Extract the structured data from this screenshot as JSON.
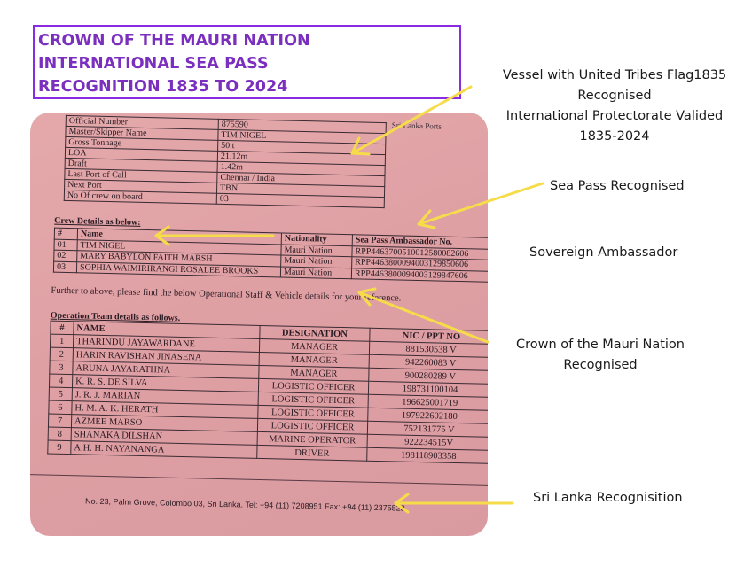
{
  "title": {
    "lines": [
      "CROWN OF THE MAURI NATION",
      "INTERNATIONAL SEA PASS",
      "RECOGNITION 1835 TO 2024"
    ]
  },
  "colors": {
    "title": "#7b2fbe",
    "border": "#8a2be2",
    "arrow": "#f7dc4a",
    "paper": "#e0a3a6"
  },
  "document": {
    "header_fragment": "Sri Lanka Ports",
    "vessel_rows": [
      {
        "label": "Official Number",
        "value": "875590"
      },
      {
        "label": "Master/Skipper Name",
        "value": "TIM NIGEL"
      },
      {
        "label": "Gross Tonnage",
        "value": "50 t"
      },
      {
        "label": "LOA",
        "value": "21.12m"
      },
      {
        "label": "Draft",
        "value": "1.42m"
      },
      {
        "label": "Last Port of Call",
        "value": "Chennai / India"
      },
      {
        "label": "Next Port",
        "value": "TBN"
      },
      {
        "label": "No Of crew on board",
        "value": "03"
      }
    ],
    "crew_heading": "Crew Details as below:",
    "crew_headers": [
      "#",
      "Name",
      "Nationality",
      "Sea Pass Ambassador No."
    ],
    "crew_rows": [
      {
        "num": "01",
        "name": "TIM NIGEL",
        "nationality": "Mauri Nation",
        "pass": "RPP4463700510012580082606"
      },
      {
        "num": "02",
        "name": "MARY BABYLON FAITH MARSH",
        "nationality": "Mauri Nation",
        "pass": "RPP4463800094003129850606"
      },
      {
        "num": "03",
        "name": "SOPHIA WAIMIRIRANGI ROSALEE BROOKS",
        "nationality": "Mauri Nation",
        "pass": "RPP4463800094003129847606"
      }
    ],
    "further_text": "Further to above, please find the below Operational Staff & Vehicle details for your reference.",
    "ops_heading": "Operation Team details as follows.",
    "ops_headers": [
      "#",
      "NAME",
      "DESIGNATION",
      "NIC / PPT NO"
    ],
    "ops_rows": [
      {
        "num": "1",
        "name": "THARINDU JAYAWARDANE",
        "designation": "MANAGER",
        "nic": "881530538 V"
      },
      {
        "num": "2",
        "name": "HARIN RAVISHAN JINASENA",
        "designation": "MANAGER",
        "nic": "942260083 V"
      },
      {
        "num": "3",
        "name": "ARUNA JAYARATHNA",
        "designation": "MANAGER",
        "nic": "900280289 V"
      },
      {
        "num": "4",
        "name": "K. R. S. DE SILVA",
        "designation": "LOGISTIC OFFICER",
        "nic": "198731100104"
      },
      {
        "num": "5",
        "name": "J. R. J. MARIAN",
        "designation": "LOGISTIC OFFICER",
        "nic": "196625001719"
      },
      {
        "num": "6",
        "name": "H. M. A. K. HERATH",
        "designation": "LOGISTIC OFFICER",
        "nic": "197922602180"
      },
      {
        "num": "7",
        "name": "AZMEE MARSO",
        "designation": "LOGISTIC OFFICER",
        "nic": "752131775 V"
      },
      {
        "num": "8",
        "name": "SHANAKA DILSHAN",
        "designation": "MARINE OPERATOR",
        "nic": "922234515V"
      },
      {
        "num": "9",
        "name": "A.H. H. NAYANANGA",
        "designation": "DRIVER",
        "nic": "198118903358"
      }
    ],
    "footer": "No. 23, Palm Grove, Colombo 03, Sri Lanka. Tel: +94 (11) 7208951 Fax: +94 (11) 2375523"
  },
  "annotations": {
    "vessel": [
      "Vessel with United Tribes Flag1835",
      "Recognised",
      "International Protectorate Valided",
      "1835-2024"
    ],
    "sea_pass": [
      "Sea Pass Recognised"
    ],
    "ambassador": [
      "Sovereign Ambassador"
    ],
    "crown": [
      "Crown of the Mauri Nation",
      "Recognised"
    ],
    "sri_lanka": [
      "Sri Lanka Recognisition"
    ]
  }
}
